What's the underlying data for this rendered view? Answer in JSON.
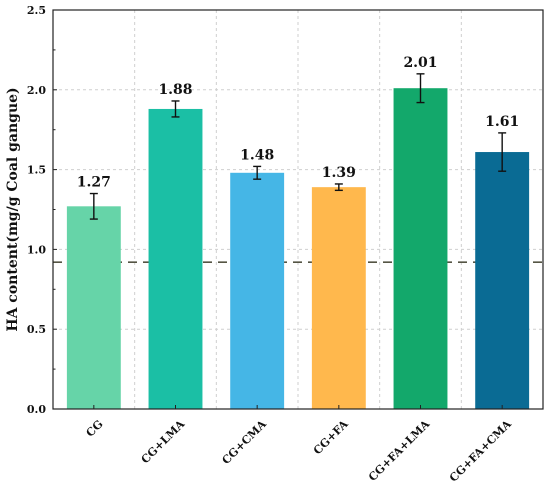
{
  "chart_data": {
    "type": "bar",
    "categories": [
      "CG",
      "CG+LMA",
      "CG+CMA",
      "CG+FA",
      "CG+FA+LMA",
      "CG+FA+CMA"
    ],
    "values": [
      1.27,
      1.88,
      1.48,
      1.39,
      2.01,
      1.61
    ],
    "errors": [
      0.08,
      0.05,
      0.04,
      0.02,
      0.09,
      0.12
    ],
    "data_labels": [
      "1.27",
      "1.88",
      "1.48",
      "1.39",
      "2.01",
      "1.61"
    ],
    "colors": [
      "#66d4a8",
      "#1bbfa5",
      "#45b6e6",
      "#ffb84d",
      "#13a86b",
      "#0a6b94"
    ],
    "xlabel": "",
    "ylabel": "HA content(mg/g Coal gangue)",
    "ylim": [
      0,
      2.5
    ],
    "yticks": [
      0.0,
      0.5,
      1.0,
      1.5,
      2.0,
      2.5
    ],
    "ytick_labels": [
      "0.0",
      "0.5",
      "1.0",
      "1.5",
      "2.0",
      "2.5"
    ],
    "reference_line": {
      "value": 0.92,
      "style": "dashed",
      "color": "#555544"
    },
    "grid": true
  }
}
